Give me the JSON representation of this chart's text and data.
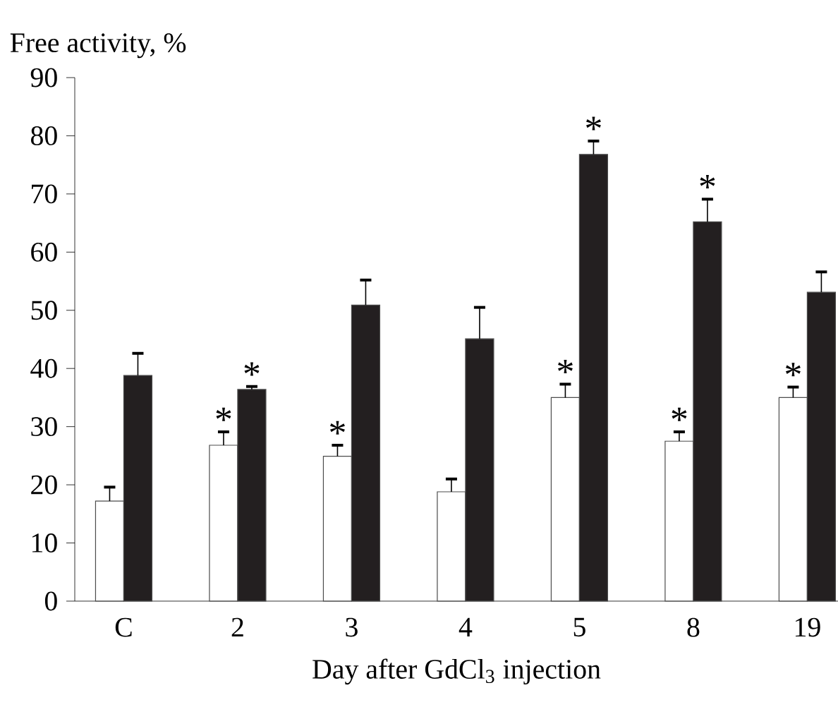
{
  "chart_data": {
    "type": "bar",
    "ylabel": "Free activity, %",
    "xlabel": "Day after GdCl$_{3}$ injection",
    "categories": [
      "C",
      "2",
      "3",
      "4",
      "5",
      "8",
      "19"
    ],
    "series": [
      {
        "color": "#ffffff",
        "values": [
          17.2,
          26.8,
          24.9,
          18.8,
          35.0,
          27.5,
          35.0
        ],
        "errors": [
          2.4,
          2.3,
          1.9,
          2.2,
          2.3,
          1.6,
          1.8
        ]
      },
      {
        "color": "#231f20",
        "values": [
          38.8,
          36.4,
          50.9,
          45.1,
          76.8,
          65.2,
          53.1
        ],
        "errors": [
          3.8,
          0.5,
          4.3,
          5.4,
          2.3,
          3.9,
          3.5
        ]
      }
    ],
    "ylim": [
      0,
      90
    ],
    "yticks": [
      0,
      10,
      20,
      30,
      40,
      50,
      60,
      70,
      80,
      90
    ],
    "annotations": [
      {
        "text": "*",
        "x": "2",
        "y": 26.8
      },
      {
        "text": "*",
        "x": "2",
        "y": 36.4
      },
      {
        "text": "*",
        "x": "3",
        "y": 24.9
      },
      {
        "text": "*",
        "x": "5",
        "y": 35.0
      },
      {
        "text": "*",
        "x": "5",
        "y": 76.8
      },
      {
        "text": "*",
        "x": "8",
        "y": 27.5
      },
      {
        "text": "*",
        "x": "8",
        "y": 65.2
      },
      {
        "text": "*",
        "x": "19",
        "y": 35.0
      }
    ]
  }
}
